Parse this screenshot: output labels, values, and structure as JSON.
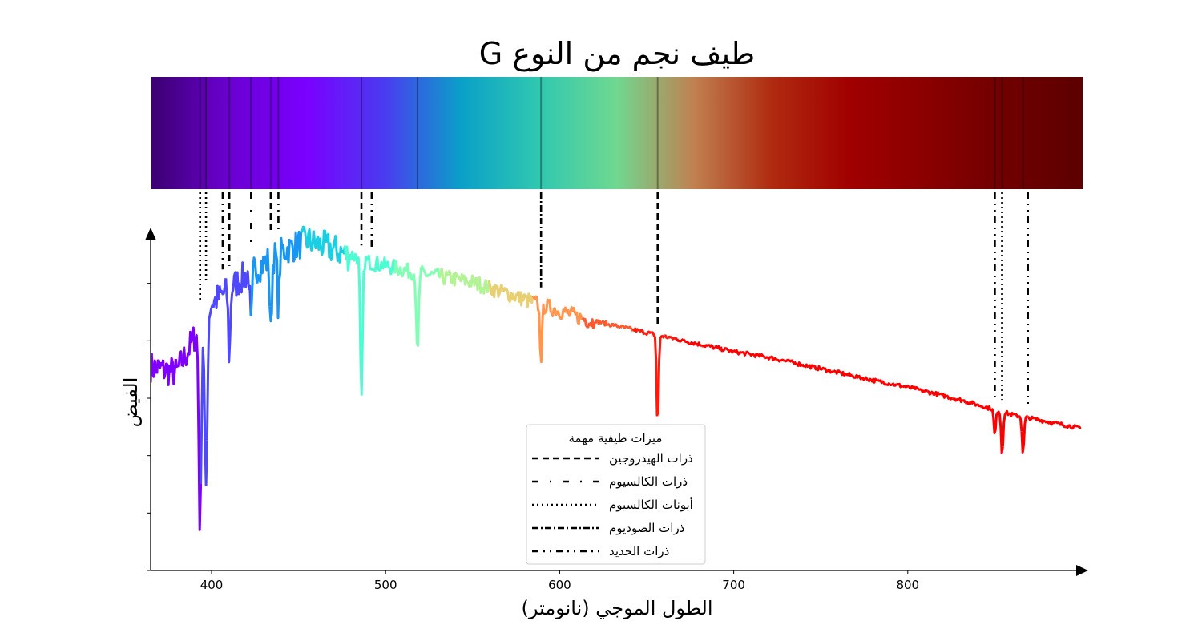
{
  "chart_data": {
    "type": "line",
    "title": "طيف نجم من النوع G",
    "xlabel": "الطول الموجي (نانومتر)",
    "ylabel": "الفيض",
    "xlim": [
      365,
      900
    ],
    "ylim": [
      0,
      6
    ],
    "x_ticks": [
      400,
      500,
      600,
      700,
      800
    ],
    "y_ticks": [
      0,
      1,
      2,
      3,
      4,
      5
    ],
    "colormap": [
      "#8000ff",
      "#4f49fb",
      "#1996f3",
      "#1acfe3",
      "#4ffbd0",
      "#80ffb4",
      "#b3f396",
      "#e8cf72",
      "#ff954f",
      "#ff5a2e",
      "#ff1a0d",
      "#ff0000"
    ],
    "spectrum_strip_colors": [
      "#3a0070",
      "#6a00d0",
      "#7a00ff",
      "#4a3bf0",
      "#0aa0c8",
      "#30c8b0",
      "#70d890",
      "#c08050",
      "#b02a10",
      "#a00000",
      "#8a0000",
      "#700000",
      "#5c0000"
    ],
    "continuum": {
      "x": [
        365,
        380,
        400,
        420,
        440,
        455,
        470,
        490,
        520,
        550,
        580,
        600,
        620,
        650,
        680,
        700,
        720,
        750,
        780,
        800,
        830,
        860,
        880,
        900
      ],
      "y": [
        3.6,
        3.5,
        4.7,
        5.2,
        5.6,
        5.8,
        5.65,
        5.4,
        5.2,
        5.05,
        4.75,
        4.55,
        4.35,
        4.15,
        3.95,
        3.82,
        3.72,
        3.52,
        3.32,
        3.2,
        2.98,
        2.72,
        2.6,
        2.48
      ]
    },
    "absorption_lines": [
      {
        "x": 393.4,
        "depth": 3.5,
        "width": 1.0
      },
      {
        "x": 396.8,
        "depth": 3.2,
        "width": 1.0
      },
      {
        "x": 410.2,
        "depth": 1.2,
        "width": 0.8
      },
      {
        "x": 422.7,
        "depth": 1.0,
        "width": 0.8
      },
      {
        "x": 434.0,
        "depth": 1.3,
        "width": 0.8
      },
      {
        "x": 438.4,
        "depth": 0.9,
        "width": 0.8
      },
      {
        "x": 486.1,
        "depth": 2.5,
        "width": 0.9
      },
      {
        "x": 518.3,
        "depth": 1.5,
        "width": 0.9
      },
      {
        "x": 589.3,
        "depth": 0.9,
        "width": 0.9
      },
      {
        "x": 656.3,
        "depth": 1.6,
        "width": 0.8
      },
      {
        "x": 850.0,
        "depth": 0.45,
        "width": 0.8
      },
      {
        "x": 854.2,
        "depth": 0.75,
        "width": 0.8
      },
      {
        "x": 866.2,
        "depth": 0.65,
        "width": 0.8
      }
    ],
    "feature_lines": [
      {
        "series": "hydrogen",
        "x": [
          410.2,
          434.0,
          486.1,
          656.3
        ],
        "y_bottom": [
          0,
          0,
          0,
          0
        ]
      },
      {
        "series": "calcium",
        "x": [
          422.7
        ],
        "y_bottom": [
          0
        ]
      },
      {
        "series": "calcium_ion",
        "x": [
          393.4,
          396.8,
          854.2
        ],
        "y_bottom": [
          0,
          0,
          0
        ]
      },
      {
        "series": "sodium",
        "x": [
          589.3
        ],
        "y_bottom": [
          0
        ]
      },
      {
        "series": "iron",
        "x": [
          406.4,
          438.4,
          492.0,
          850.0,
          869.0
        ],
        "y_bottom": [
          0,
          0,
          0,
          0,
          0
        ]
      }
    ],
    "legend": {
      "title": "ميزات طيفية مهمة",
      "placement": "bottom-center",
      "entries": [
        {
          "label": "ذرات الهيدروجين",
          "style": "dashed"
        },
        {
          "label": "ذرات الكالسيوم",
          "style": "dash-dot-sparse"
        },
        {
          "label": "أيونات الكالسيوم",
          "style": "dotted"
        },
        {
          "label": "ذرات الصوديوم",
          "style": "dash-dot"
        },
        {
          "label": "ذرات الحديد",
          "style": "dash-dot-dot"
        }
      ]
    }
  }
}
